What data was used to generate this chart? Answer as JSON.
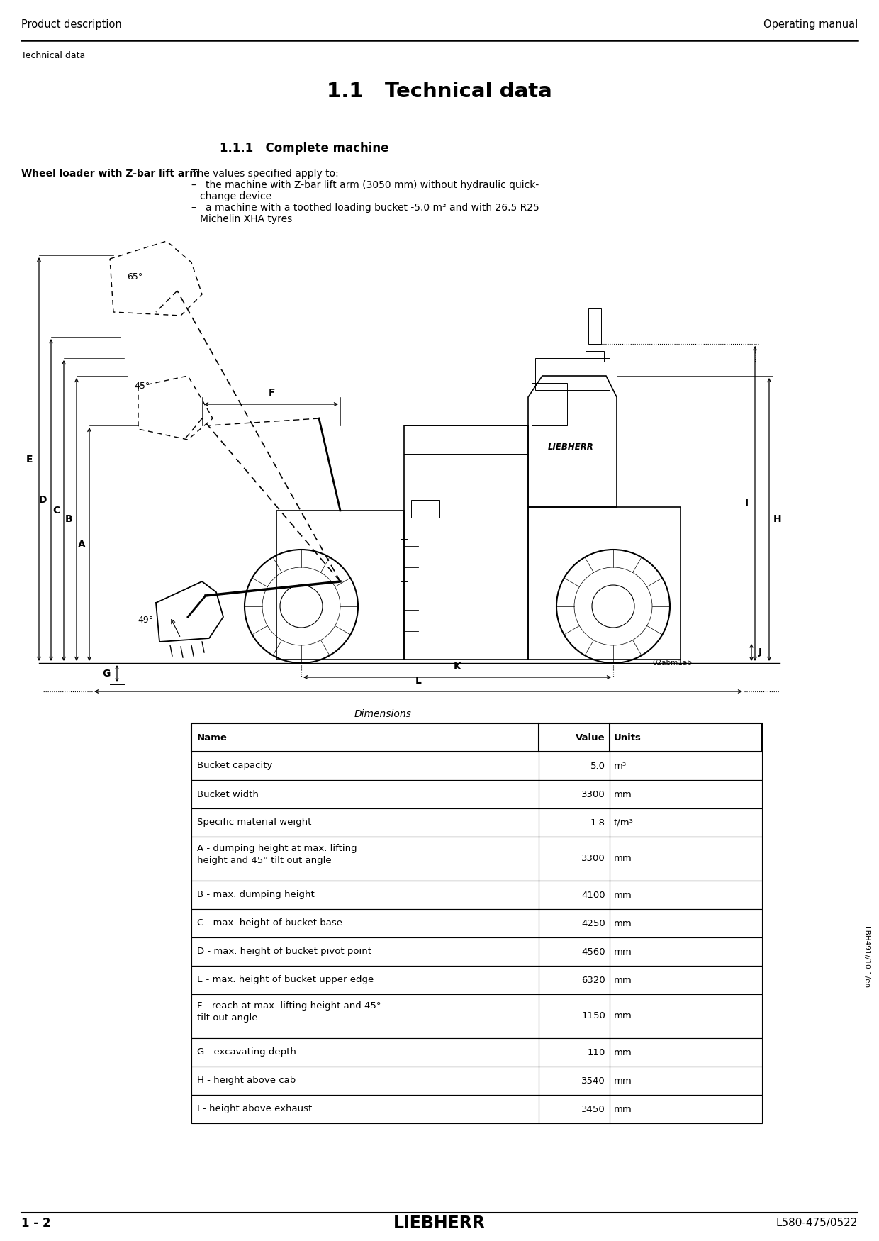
{
  "header_left": "Product description",
  "header_right": "Operating manual",
  "header_sub": "Technical data",
  "title": "1.1   Technical data",
  "section": "1.1.1   Complete machine",
  "sidebar_label": "Wheel loader with Z-bar lift arm",
  "desc_line0": "The values specified apply to:",
  "desc_line1": "–   the machine with Z-bar lift arm (3050 mm) without hydraulic quick-",
  "desc_line1b": "    change device",
  "desc_line2": "–   a machine with a toothed loading bucket -5.0 m³ and with 26.5 R25",
  "desc_line2b": "    Michelin XHA tyres",
  "fig_caption": "Dimensions",
  "table_headers": [
    "Name",
    "Value",
    "Units"
  ],
  "table_rows": [
    [
      "Bucket capacity",
      "5.0",
      "m³"
    ],
    [
      "Bucket width",
      "3300",
      "mm"
    ],
    [
      "Specific material weight",
      "1.8",
      "t/m³"
    ],
    [
      "A - dumping height at max. lifting\nheight and 45° tilt out angle",
      "3300",
      "mm"
    ],
    [
      "B - max. dumping height",
      "4100",
      "mm"
    ],
    [
      "C - max. height of bucket base",
      "4250",
      "mm"
    ],
    [
      "D - max. height of bucket pivot point",
      "4560",
      "mm"
    ],
    [
      "E - max. height of bucket upper edge",
      "6320",
      "mm"
    ],
    [
      "F - reach at max. lifting height and 45°\ntilt out angle",
      "1150",
      "mm"
    ],
    [
      "G - excavating depth",
      "110",
      "mm"
    ],
    [
      "H - height above cab",
      "3540",
      "mm"
    ],
    [
      "I - height above exhaust",
      "3450",
      "mm"
    ]
  ],
  "footer_left": "1 - 2",
  "footer_center": "LIEBHERR",
  "footer_right": "L580-475/0522",
  "side_label": "LBH491//10.1/en"
}
